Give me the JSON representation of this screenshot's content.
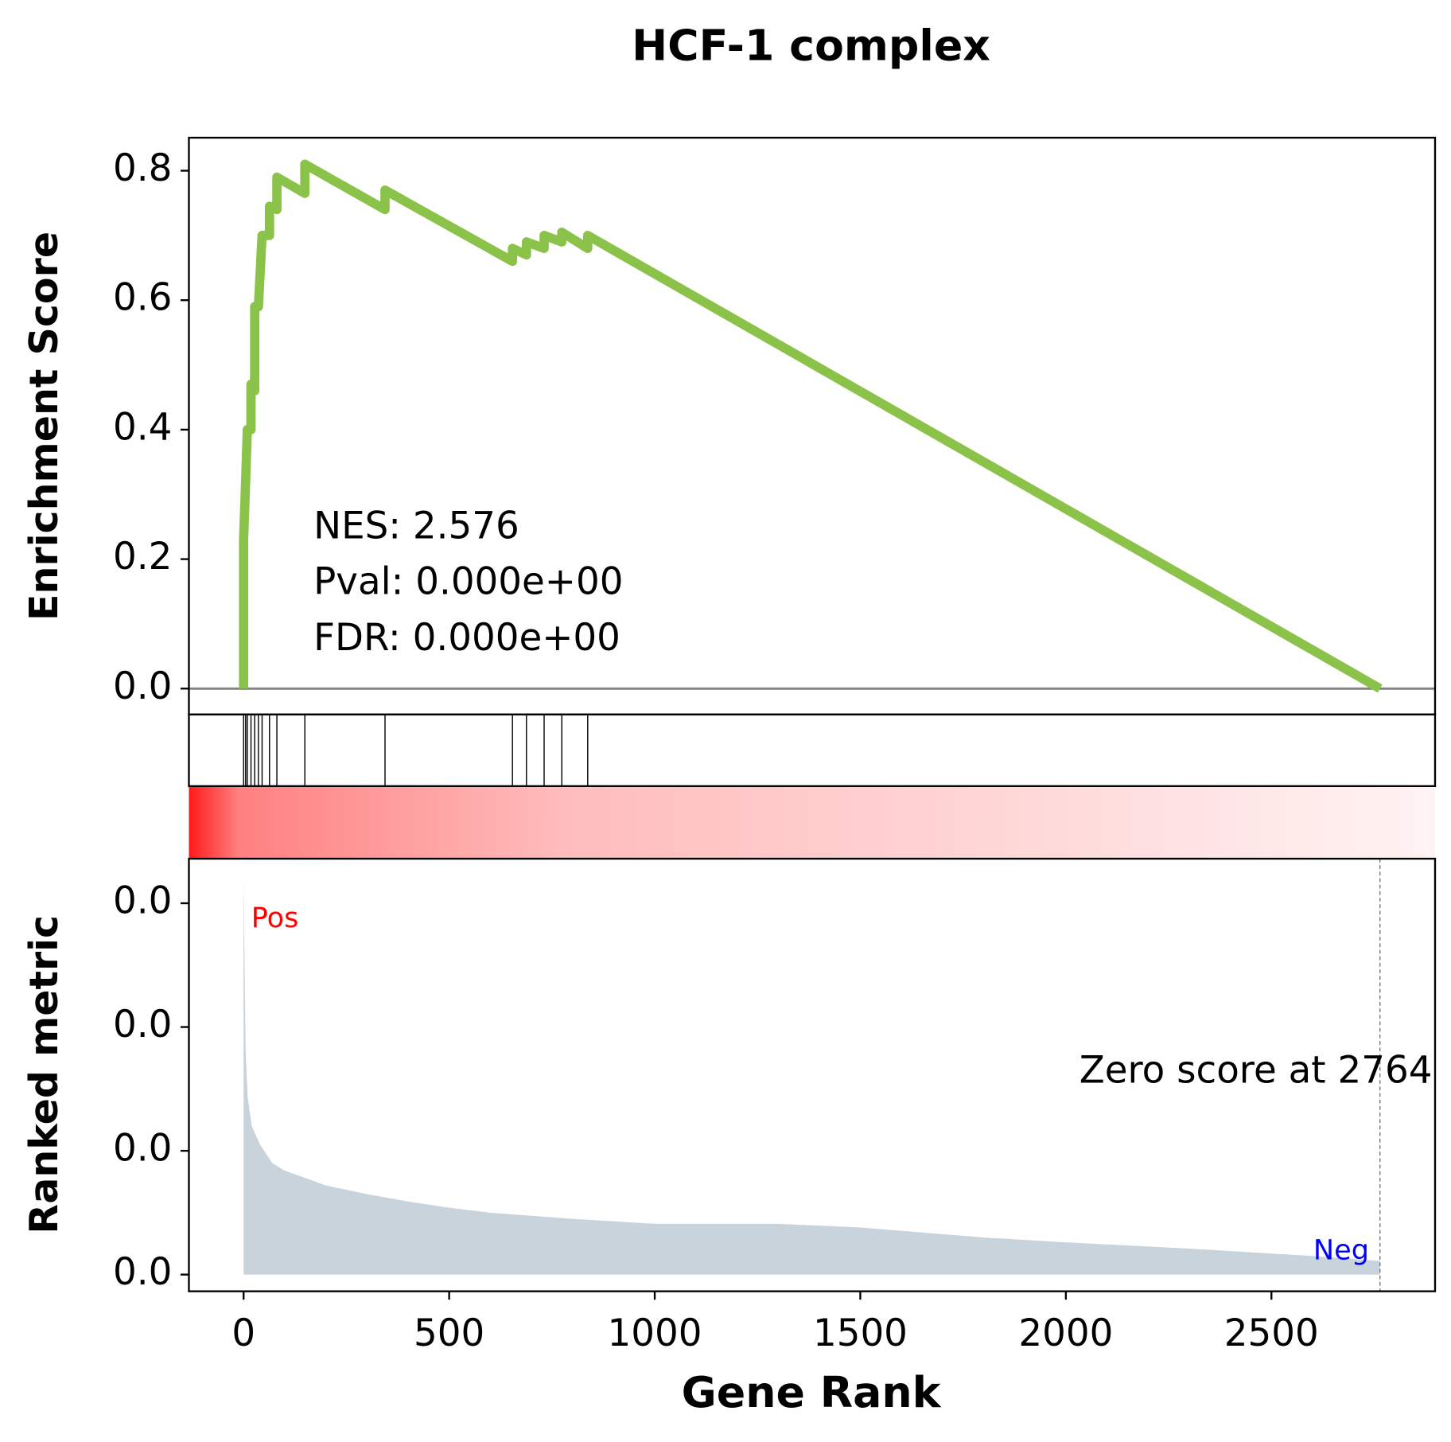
{
  "chart_data": {
    "type": "gsea",
    "title": "HCF-1 complex",
    "xlabel": "Gene Rank",
    "ylabel": "Enrichment Score",
    "ylabel2": "Ranked metric",
    "xlim": [
      -133,
      2898
    ],
    "xticks": [
      0,
      500,
      1000,
      1500,
      2000,
      2500
    ],
    "ylim": [
      -0.04,
      0.851
    ],
    "yticks": [
      {
        "value": 0,
        "label": "0.0"
      },
      0.2,
      0.4,
      0.6,
      0.8
    ],
    "y2lim": [
      -0.00135,
      0.0336
    ],
    "y2ticks": [
      {
        "value": 0,
        "label": "0.0"
      },
      {
        "value": 0.01,
        "label": "0.0"
      },
      {
        "value": 0.02,
        "label": "0.0"
      },
      {
        "value": 0.03,
        "label": "0.0"
      }
    ],
    "enrichment": {
      "color": "#8bc34a",
      "x": [
        0,
        0,
        5,
        9,
        18,
        18,
        27,
        27,
        36,
        45,
        63,
        63,
        81,
        81,
        149,
        149,
        344,
        344,
        654,
        654,
        688,
        688,
        731,
        731,
        774,
        774,
        837,
        837,
        2764
      ],
      "values": [
        0,
        0.23,
        0.32,
        0.4,
        0.4,
        0.47,
        0.46,
        0.59,
        0.59,
        0.7,
        0.7,
        0.745,
        0.74,
        0.79,
        0.765,
        0.81,
        0.74,
        0.77,
        0.66,
        0.68,
        0.67,
        0.69,
        0.68,
        0.7,
        0.69,
        0.705,
        0.68,
        0.7,
        0
      ]
    },
    "hits": [
      0,
      5,
      9,
      18,
      27,
      36,
      45,
      63,
      81,
      149,
      344,
      654,
      688,
      731,
      774,
      837
    ],
    "ranked_metric": {
      "color": "#c8d3dc",
      "x": [
        0,
        5,
        10,
        20,
        40,
        70,
        100,
        150,
        200,
        300,
        400,
        500,
        600,
        800,
        1000,
        1300,
        1500,
        1800,
        2000,
        2300,
        2600,
        2764
      ],
      "values": [
        0.0321,
        0.018,
        0.0143,
        0.012,
        0.0105,
        0.009,
        0.0084,
        0.0078,
        0.0072,
        0.0065,
        0.0059,
        0.0054,
        0.005,
        0.0045,
        0.0041,
        0.0041,
        0.0038,
        0.003,
        0.0026,
        0.0021,
        0.0015,
        0.0011
      ]
    },
    "stats": [
      "NES: 2.576",
      "Pval: 0.000e+00",
      "FDR: 0.000e+00"
    ],
    "pos_label": "Pos",
    "neg_label": "Neg",
    "zero_label": "Zero score at 2764",
    "zero_rank": 2764
  }
}
